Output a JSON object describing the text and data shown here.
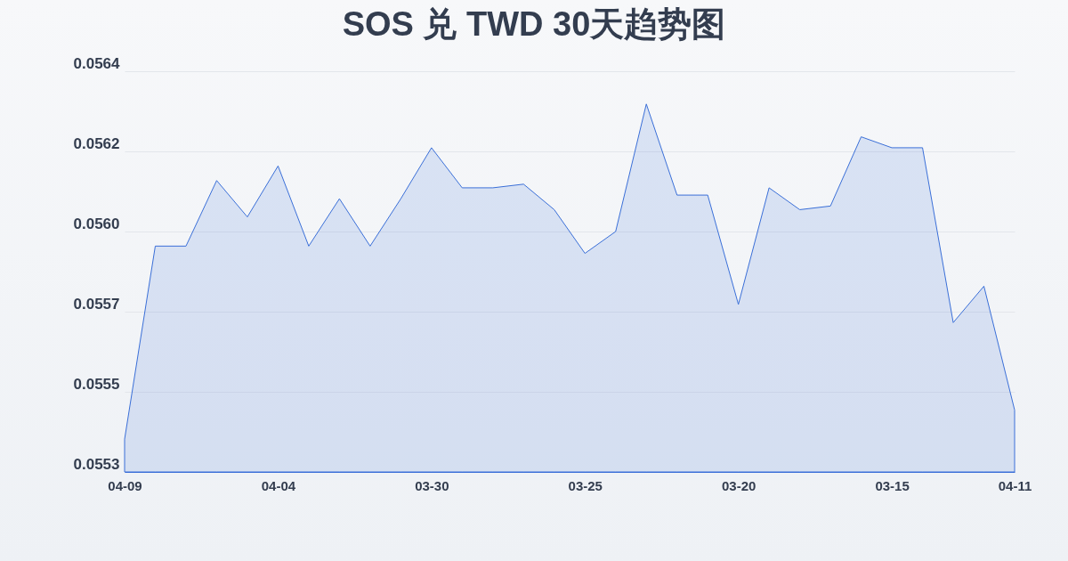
{
  "chart_data": {
    "type": "area",
    "title": "SOS 兑 TWD 30天趋势图",
    "categories": [
      "04-09",
      null,
      null,
      null,
      null,
      "04-04",
      null,
      null,
      null,
      null,
      "03-30",
      null,
      null,
      null,
      null,
      "03-25",
      null,
      null,
      null,
      null,
      "03-20",
      null,
      null,
      null,
      null,
      "03-15",
      null,
      null,
      null,
      "04-11"
    ],
    "series": [
      {
        "color": "#3a6fd8",
        "values": [
          0.05539,
          0.05592,
          0.05592,
          0.0561,
          0.056,
          0.05614,
          0.05592,
          0.05605,
          0.05592,
          0.05605,
          0.05619,
          0.05608,
          0.05608,
          0.05609,
          0.05602,
          0.0559,
          0.05596,
          0.05631,
          0.05606,
          0.05606,
          0.05576,
          0.05608,
          0.05602,
          0.05603,
          0.05622,
          0.05619,
          0.05619,
          0.05571,
          0.05581,
          0.05547
        ]
      }
    ],
    "ylim": [
      0.0553,
      0.0564
    ],
    "yticks": [
      0.0553,
      {
        "value": 0.05552,
        "label": "0.0555"
      },
      {
        "value": 0.05574,
        "label": "0.0557"
      },
      {
        "value": 0.05596,
        "label": "0.0560"
      },
      {
        "value": 0.05618,
        "label": "0.0562"
      },
      0.0564
    ],
    "grid": "y"
  }
}
